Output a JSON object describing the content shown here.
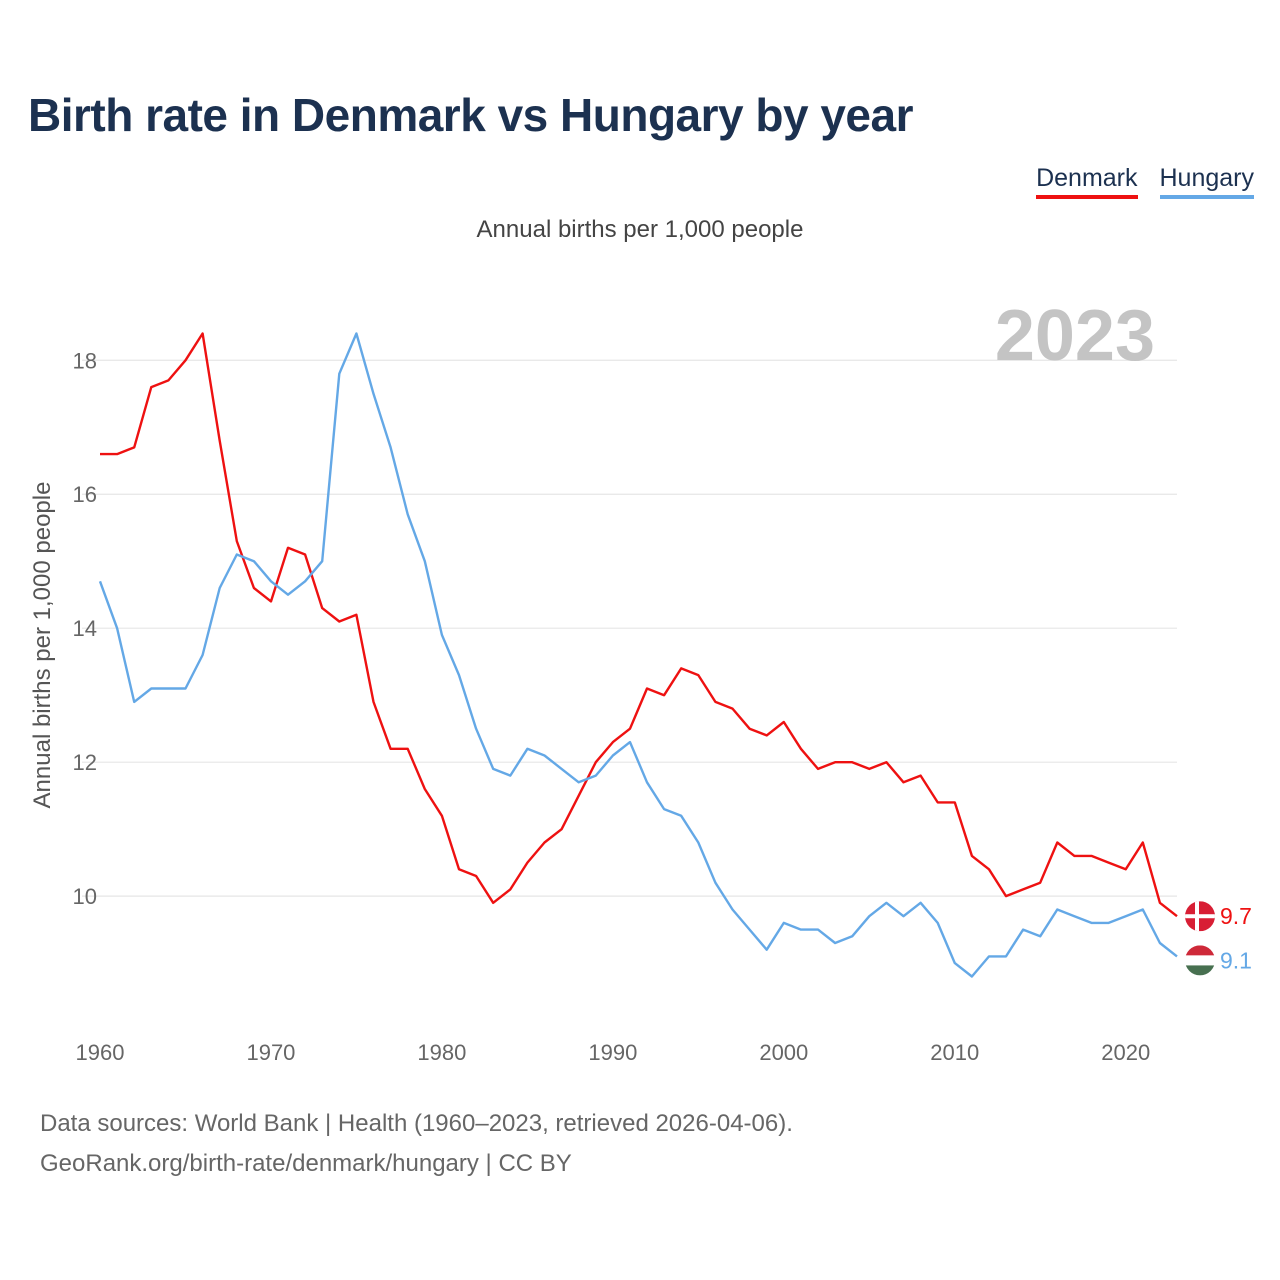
{
  "title": "Birth rate in Denmark vs Hungary by year",
  "subtitle": "Annual births per 1,000 people",
  "legend": [
    {
      "label": "Denmark",
      "color": "#ee1111"
    },
    {
      "label": "Hungary",
      "color": "#64a8e6"
    }
  ],
  "footer": {
    "line1": "Data sources: World Bank | Health (1960–2023, retrieved 2026-04-06).",
    "line2": "GeoRank.org/birth-rate/denmark/hungary | CC BY"
  },
  "chart_data": {
    "type": "line",
    "title": "Birth rate in Denmark vs Hungary by year",
    "ylabel": "Annual births per 1,000 people",
    "xlabel": "",
    "xlim": [
      1960,
      2023
    ],
    "ylim": [
      8.3,
      18.9
    ],
    "x_ticks": [
      1960,
      1970,
      1980,
      1990,
      2000,
      2010,
      2020
    ],
    "y_ticks": [
      10,
      12,
      14,
      16,
      18
    ],
    "grid": true,
    "watermark_year": "2023",
    "x": [
      1960,
      1961,
      1962,
      1963,
      1964,
      1965,
      1966,
      1967,
      1968,
      1969,
      1970,
      1971,
      1972,
      1973,
      1974,
      1975,
      1976,
      1977,
      1978,
      1979,
      1980,
      1981,
      1982,
      1983,
      1984,
      1985,
      1986,
      1987,
      1988,
      1989,
      1990,
      1991,
      1992,
      1993,
      1994,
      1995,
      1996,
      1997,
      1998,
      1999,
      2000,
      2001,
      2002,
      2003,
      2004,
      2005,
      2006,
      2007,
      2008,
      2009,
      2010,
      2011,
      2012,
      2013,
      2014,
      2015,
      2016,
      2017,
      2018,
      2019,
      2020,
      2021,
      2022,
      2023
    ],
    "series": [
      {
        "name": "Denmark",
        "color": "#ee1111",
        "end_label": "9.7",
        "values": [
          16.6,
          16.6,
          16.7,
          17.6,
          17.7,
          18.0,
          18.4,
          16.8,
          15.3,
          14.6,
          14.4,
          15.2,
          15.1,
          14.3,
          14.1,
          14.2,
          12.9,
          12.2,
          12.2,
          11.6,
          11.2,
          10.4,
          10.3,
          9.9,
          10.1,
          10.5,
          10.8,
          11.0,
          11.5,
          12.0,
          12.3,
          12.5,
          13.1,
          13.0,
          13.4,
          13.3,
          12.9,
          12.8,
          12.5,
          12.4,
          12.6,
          12.2,
          11.9,
          12.0,
          12.0,
          11.9,
          12.0,
          11.7,
          11.8,
          11.4,
          11.4,
          10.6,
          10.4,
          10.0,
          10.1,
          10.2,
          10.8,
          10.6,
          10.6,
          10.5,
          10.4,
          10.8,
          9.9,
          9.7
        ]
      },
      {
        "name": "Hungary",
        "color": "#64a8e6",
        "end_label": "9.1",
        "values": [
          14.7,
          14.0,
          12.9,
          13.1,
          13.1,
          13.1,
          13.6,
          14.6,
          15.1,
          15.0,
          14.7,
          14.5,
          14.7,
          15.0,
          17.8,
          18.4,
          17.5,
          16.7,
          15.7,
          15.0,
          13.9,
          13.3,
          12.5,
          11.9,
          11.8,
          12.2,
          12.1,
          11.9,
          11.7,
          11.8,
          12.1,
          12.3,
          11.7,
          11.3,
          11.2,
          10.8,
          10.2,
          9.8,
          9.5,
          9.2,
          9.6,
          9.5,
          9.5,
          9.3,
          9.4,
          9.7,
          9.9,
          9.7,
          9.9,
          9.6,
          9.0,
          8.8,
          9.1,
          9.1,
          9.5,
          9.4,
          9.8,
          9.7,
          9.6,
          9.6,
          9.7,
          9.8,
          9.3,
          9.1
        ]
      }
    ]
  }
}
